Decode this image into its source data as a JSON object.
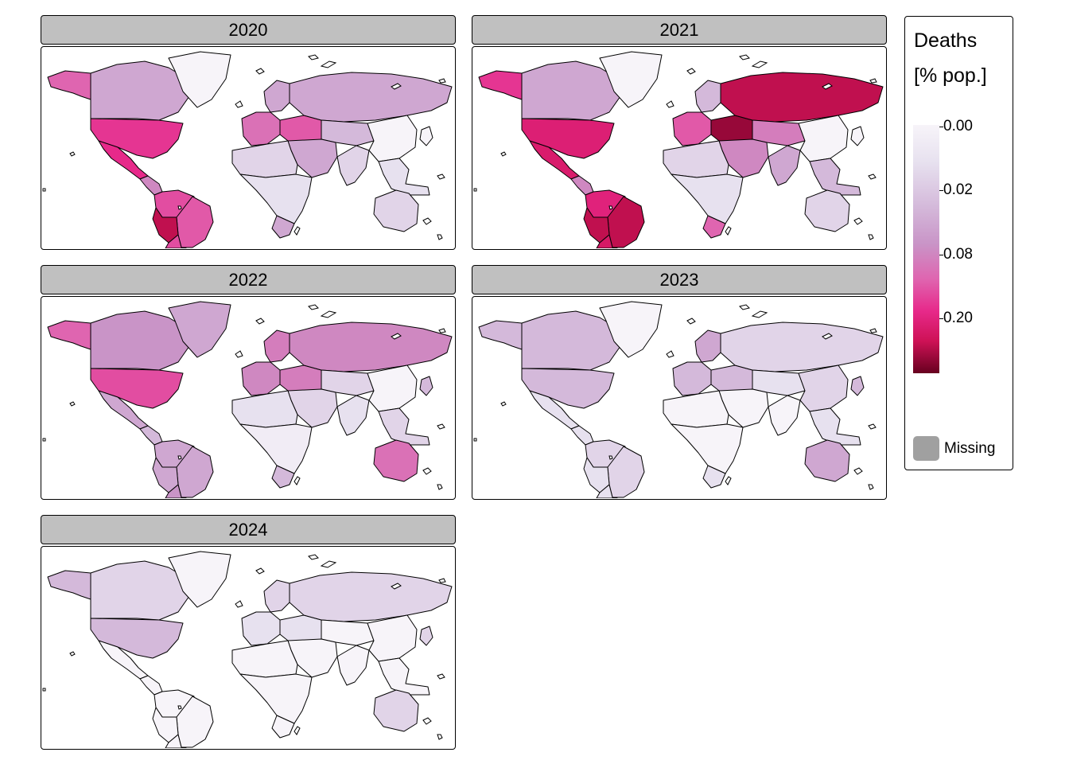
{
  "legend": {
    "title_line1": "Deaths",
    "title_line2": "[% pop.]",
    "ticks": [
      "0.00",
      "0.02",
      "0.08",
      "0.20"
    ],
    "missing_label": "Missing",
    "missing_color": "#a0a0a0",
    "palette": [
      "#f7f4f9",
      "#e7e1ef",
      "#d4b9da",
      "#c994c7",
      "#df65b0",
      "#e7298a",
      "#ce1256",
      "#67001f"
    ]
  },
  "panels": [
    {
      "year": "2020",
      "regions": {
        "alaska": 0.08,
        "canada": 0.03,
        "greenland": 0.0,
        "usa": 0.12,
        "mexico": 0.13,
        "central_america": 0.05,
        "south_america_north": 0.1,
        "brazil": 0.09,
        "peru": 0.22,
        "argentina": 0.1,
        "europe_west": 0.07,
        "europe_east": 0.09,
        "scandinavia": 0.03,
        "russia": 0.03,
        "middle_east": 0.03,
        "north_africa": 0.01,
        "africa": 0.005,
        "south_africa": 0.03,
        "central_asia": 0.02,
        "south_asia": 0.01,
        "china": 0.0,
        "southeast_asia": 0.005,
        "japan": 0.0,
        "australia": 0.01
      }
    },
    {
      "year": "2021",
      "regions": {
        "alaska": 0.12,
        "canada": 0.03,
        "greenland": 0.0,
        "usa": 0.16,
        "mexico": 0.17,
        "central_america": 0.05,
        "south_america_north": 0.15,
        "brazil": 0.22,
        "peru": 0.22,
        "argentina": 0.18,
        "europe_west": 0.09,
        "europe_east": 0.28,
        "scandinavia": 0.02,
        "russia": 0.22,
        "middle_east": 0.05,
        "north_africa": 0.01,
        "africa": 0.005,
        "south_africa": 0.08,
        "central_asia": 0.06,
        "south_asia": 0.03,
        "china": 0.0,
        "southeast_asia": 0.02,
        "japan": 0.0,
        "australia": 0.01
      }
    },
    {
      "year": "2022",
      "regions": {
        "alaska": 0.08,
        "canada": 0.04,
        "greenland": 0.03,
        "usa": 0.1,
        "mexico": 0.03,
        "central_america": 0.02,
        "south_america_north": 0.03,
        "brazil": 0.03,
        "peru": 0.03,
        "argentina": 0.04,
        "europe_west": 0.05,
        "europe_east": 0.06,
        "scandinavia": 0.06,
        "russia": 0.05,
        "middle_east": 0.01,
        "north_africa": 0.005,
        "africa": 0.002,
        "south_africa": 0.02,
        "central_asia": 0.01,
        "south_asia": 0.005,
        "china": 0.0,
        "southeast_asia": 0.01,
        "japan": 0.02,
        "australia": 0.07
      }
    },
    {
      "year": "2023",
      "regions": {
        "alaska": 0.02,
        "canada": 0.02,
        "greenland": 0.0,
        "usa": 0.02,
        "mexico": 0.005,
        "central_america": 0.005,
        "south_america_north": 0.01,
        "brazil": 0.01,
        "peru": 0.005,
        "argentina": 0.005,
        "europe_west": 0.02,
        "europe_east": 0.02,
        "scandinavia": 0.03,
        "russia": 0.01,
        "middle_east": 0.0,
        "north_africa": 0.0,
        "africa": 0.0,
        "south_africa": 0.005,
        "central_asia": 0.005,
        "south_asia": 0.0,
        "china": 0.01,
        "southeast_asia": 0.005,
        "japan": 0.02,
        "australia": 0.03
      }
    },
    {
      "year": "2024",
      "regions": {
        "alaska": 0.02,
        "canada": 0.01,
        "greenland": 0.0,
        "usa": 0.02,
        "mexico": 0.0,
        "central_america": 0.0,
        "south_america_north": 0.0,
        "brazil": 0.0,
        "peru": 0.0,
        "argentina": 0.0,
        "europe_west": 0.005,
        "europe_east": 0.005,
        "scandinavia": 0.01,
        "russia": 0.01,
        "middle_east": 0.0,
        "north_africa": 0.0,
        "africa": 0.0,
        "south_africa": 0.0,
        "central_asia": 0.0,
        "south_asia": 0.0,
        "china": 0.0,
        "southeast_asia": 0.0,
        "japan": 0.01,
        "australia": 0.01
      }
    }
  ]
}
